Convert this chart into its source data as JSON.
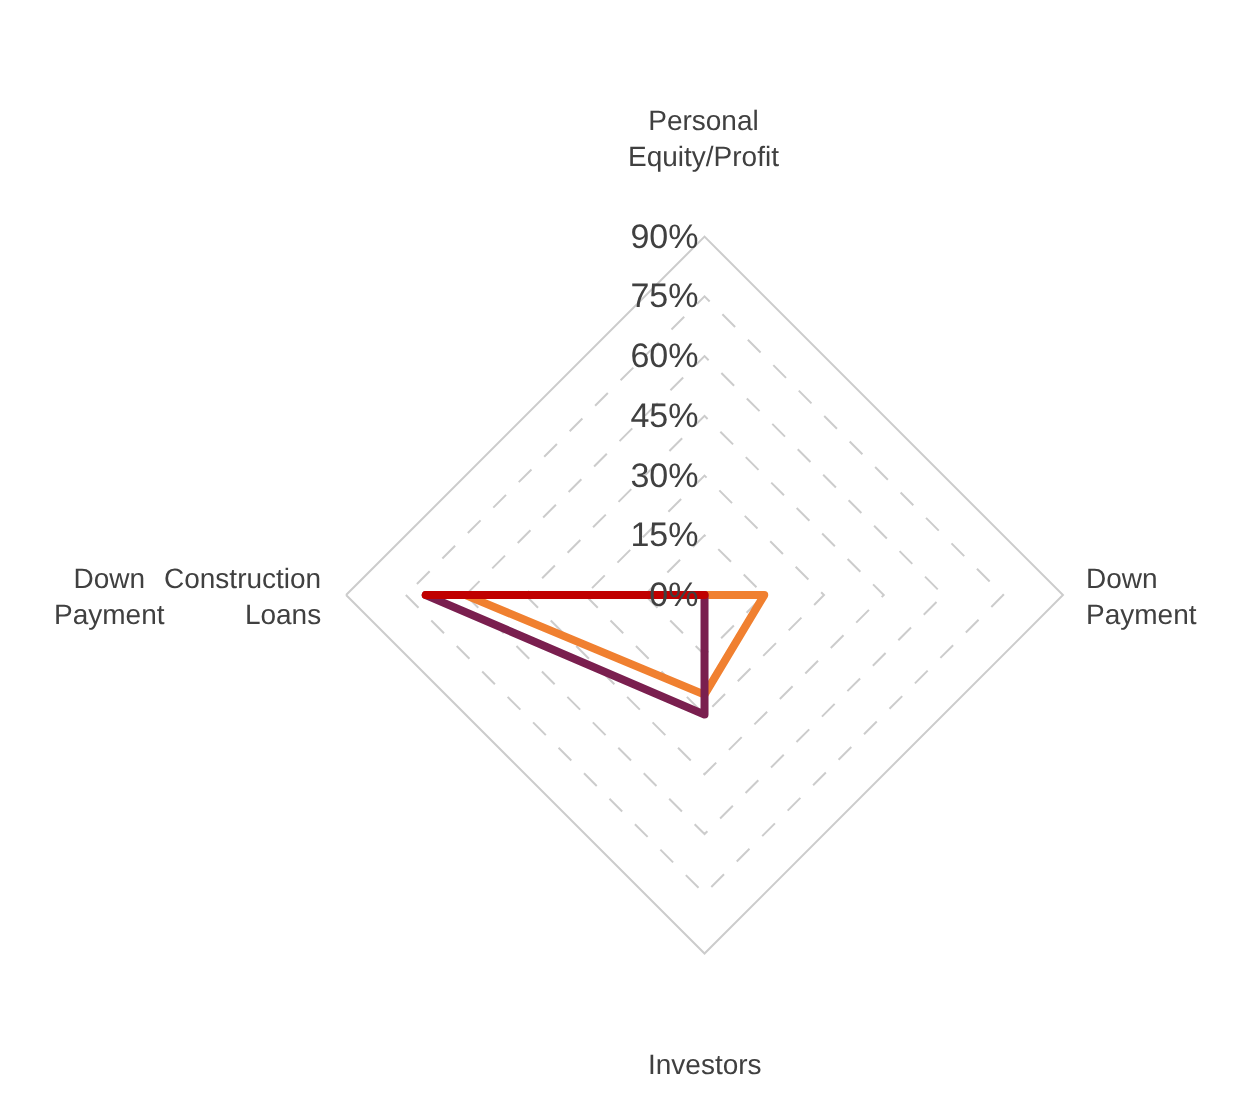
{
  "chart_data": {
    "type": "radar",
    "categories": [
      "Personal\nEquity/Profit",
      "Down\nPayment",
      "Investors",
      "Construction\nLoans"
    ],
    "series": [
      {
        "color": "#f08030",
        "values": [
          0,
          15,
          25,
          60
        ]
      },
      {
        "color": "#7a1f4f",
        "values": [
          0,
          0,
          30,
          70
        ]
      },
      {
        "color": "#c00000",
        "values": [
          0,
          0,
          0,
          70
        ]
      }
    ],
    "ylim": [
      0,
      90
    ],
    "yticks": [
      {
        "value": 0,
        "label": "0%"
      },
      {
        "value": 15,
        "label": "15%"
      },
      {
        "value": 30,
        "label": "30%"
      },
      {
        "value": 45,
        "label": "45%"
      },
      {
        "value": 60,
        "label": "60%"
      },
      {
        "value": 75,
        "label": "75%"
      },
      {
        "value": 90,
        "label": "90%"
      }
    ],
    "grid": true,
    "line_style": "solid",
    "marker": "none",
    "annotations": [
      "Down\nPayment"
    ]
  }
}
